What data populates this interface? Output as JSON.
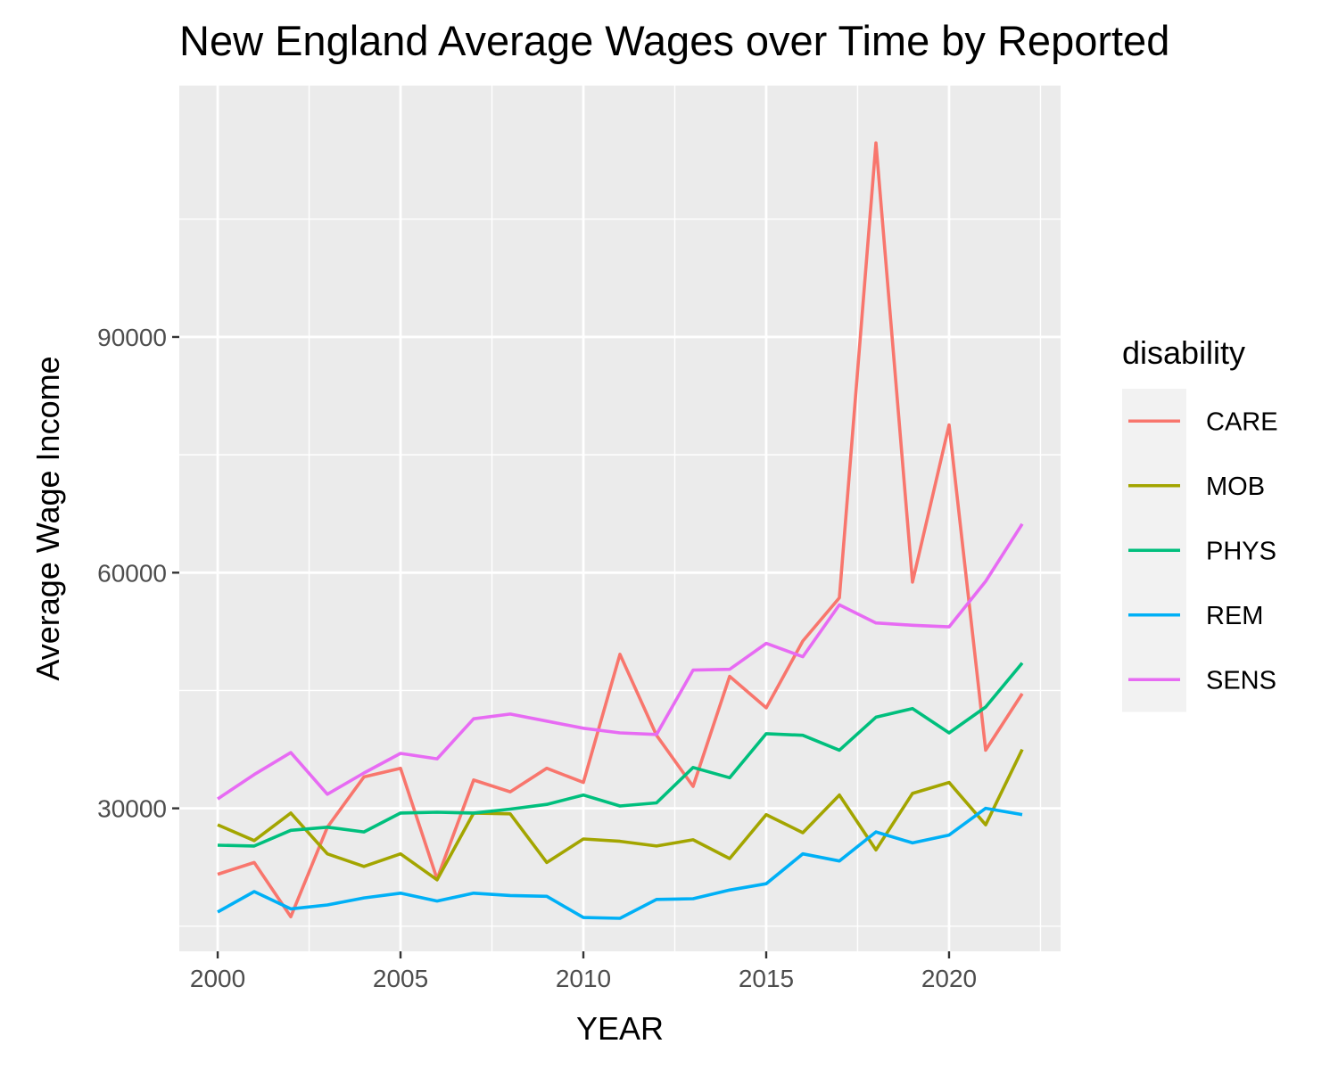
{
  "chart_data": {
    "type": "line",
    "title": "New England Average Wages over Time by Reported",
    "xlabel": "YEAR",
    "ylabel": "Average Wage Income",
    "xlim": [
      1998.95,
      2023.05
    ],
    "ylim": [
      11800,
      122000
    ],
    "x_ticks": [
      2000,
      2005,
      2010,
      2015,
      2020
    ],
    "y_ticks": [
      30000,
      60000,
      90000
    ],
    "grid": true,
    "legend": {
      "title": "disability",
      "position": "right"
    },
    "x": [
      2000,
      2001,
      2002,
      2003,
      2004,
      2005,
      2006,
      2007,
      2008,
      2009,
      2010,
      2011,
      2012,
      2013,
      2014,
      2015,
      2016,
      2017,
      2018,
      2019,
      2020,
      2021,
      2022
    ],
    "series": [
      {
        "name": "CARE",
        "color": "#F8766D",
        "values": [
          21600,
          23100,
          16200,
          27600,
          34000,
          35100,
          21000,
          33600,
          32100,
          35100,
          33300,
          49600,
          39300,
          32800,
          46800,
          42800,
          51300,
          56800,
          114700,
          58800,
          78800,
          37400,
          44600
        ]
      },
      {
        "name": "MOB",
        "color": "#A3A500",
        "values": [
          27900,
          25900,
          29400,
          24200,
          22600,
          24200,
          20900,
          29400,
          29300,
          23100,
          26100,
          25800,
          25200,
          26000,
          23600,
          29200,
          26900,
          31700,
          24700,
          31900,
          33300,
          27900,
          37500
        ]
      },
      {
        "name": "PHYS",
        "color": "#00BF7D",
        "values": [
          25300,
          25200,
          27200,
          27600,
          27000,
          29400,
          29500,
          29400,
          29900,
          30500,
          31700,
          30300,
          30700,
          35200,
          33900,
          39500,
          39300,
          37400,
          41600,
          42700,
          39600,
          42900,
          48500
        ]
      },
      {
        "name": "REM",
        "color": "#00B0F6",
        "values": [
          16800,
          19400,
          17200,
          17700,
          18600,
          19200,
          18200,
          19200,
          18900,
          18800,
          16100,
          16000,
          18400,
          18500,
          19600,
          20400,
          24200,
          23300,
          27000,
          25600,
          26600,
          30000,
          29200
        ]
      },
      {
        "name": "SENS",
        "color": "#E76BF3",
        "values": [
          31200,
          34300,
          37100,
          31800,
          34500,
          37000,
          36300,
          41400,
          42000,
          41100,
          40200,
          39600,
          39400,
          47600,
          47700,
          51000,
          49300,
          55900,
          53600,
          53300,
          53100,
          58900,
          66200
        ]
      }
    ]
  }
}
